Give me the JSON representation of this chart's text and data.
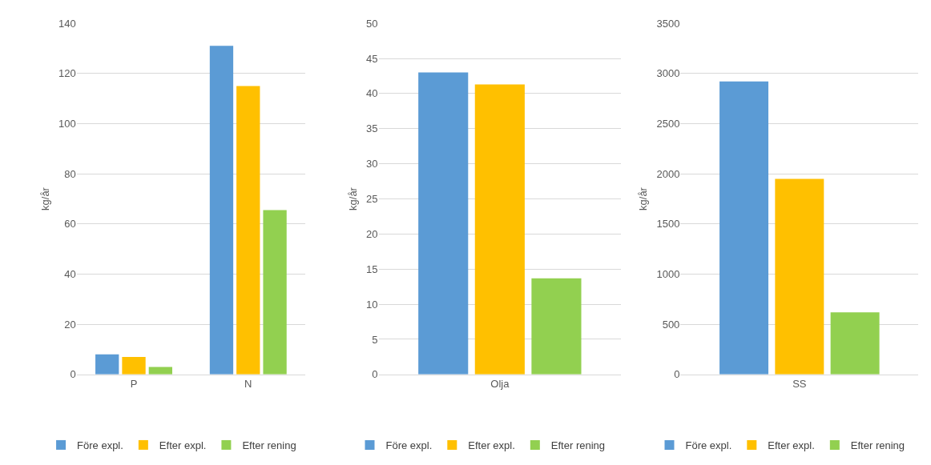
{
  "chart_data": [
    {
      "type": "bar",
      "ylabel": "kg/år",
      "categories": [
        "P",
        "N"
      ],
      "ylim": [
        0,
        140
      ],
      "yticks": [
        0,
        20,
        40,
        60,
        80,
        100,
        120,
        140
      ],
      "grid": "y",
      "legend": "bottom",
      "series": [
        {
          "name": "Före expl.",
          "color": "#5b9bd5",
          "values": [
            8,
            131
          ]
        },
        {
          "name": "Efter expl.",
          "color": "#ffc000",
          "values": [
            7,
            115
          ]
        },
        {
          "name": "Efter rening",
          "color": "#92d050",
          "values": [
            3,
            65.5
          ]
        }
      ]
    },
    {
      "type": "bar",
      "ylabel": "kg/år",
      "categories": [
        "Olja"
      ],
      "ylim": [
        0,
        50
      ],
      "yticks": [
        0,
        5,
        10,
        15,
        20,
        25,
        30,
        35,
        40,
        45,
        50
      ],
      "grid": "y",
      "legend": "bottom",
      "series": [
        {
          "name": "Före expl.",
          "color": "#5b9bd5",
          "values": [
            43
          ]
        },
        {
          "name": "Efter expl.",
          "color": "#ffc000",
          "values": [
            41.3
          ]
        },
        {
          "name": "Efter rening",
          "color": "#92d050",
          "values": [
            13.7
          ]
        }
      ]
    },
    {
      "type": "bar",
      "ylabel": "kg/år",
      "categories": [
        "SS"
      ],
      "ylim": [
        0,
        3500
      ],
      "yticks": [
        0,
        500,
        1000,
        1500,
        2000,
        2500,
        3000,
        3500
      ],
      "grid": "y",
      "legend": "bottom",
      "series": [
        {
          "name": "Före expl.",
          "color": "#5b9bd5",
          "values": [
            2920
          ]
        },
        {
          "name": "Efter expl.",
          "color": "#ffc000",
          "values": [
            1950
          ]
        },
        {
          "name": "Efter rening",
          "color": "#92d050",
          "values": [
            620
          ]
        }
      ]
    }
  ]
}
